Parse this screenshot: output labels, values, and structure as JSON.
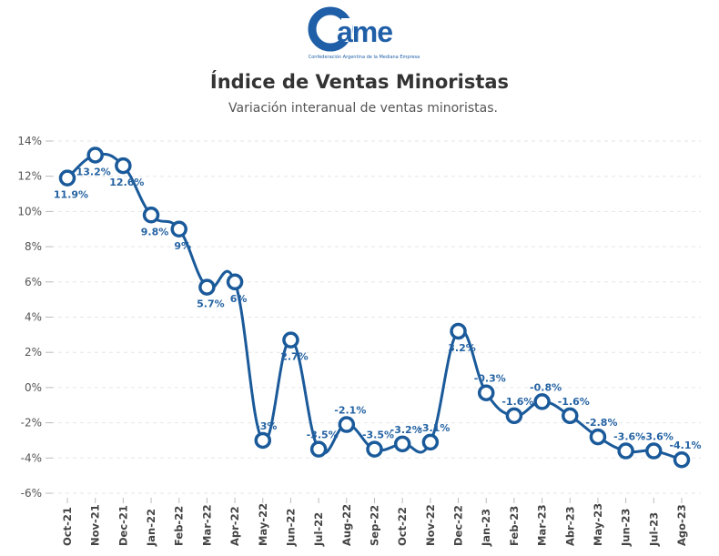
{
  "logo": {
    "text": "Came",
    "tagline": "Confederación Argentina de la Mediana Empresa"
  },
  "chart_data": {
    "type": "line",
    "title": "Índice de Ventas Minoristas",
    "subtitle": "Variación interanual de ventas minoristas.",
    "xlabel": "",
    "ylabel": "",
    "categories": [
      "Oct-21",
      "Nov-21",
      "Dec-21",
      "Jan-22",
      "Feb-22",
      "Mar-22",
      "Apr-22",
      "May-22",
      "Jun-22",
      "Jul-22",
      "Aug-22",
      "Sep-22",
      "Oct-22",
      "Nov-22",
      "Dec-22",
      "Jan-23",
      "Feb-23",
      "Mar-23",
      "Abr-23",
      "May-23",
      "Jun-23",
      "Jul-23",
      "Ago-23"
    ],
    "values": [
      11.9,
      13.2,
      12.6,
      9.8,
      9,
      5.7,
      6,
      -3,
      2.7,
      -3.5,
      -2.1,
      -3.5,
      -3.2,
      -3.1,
      3.2,
      -0.3,
      -1.6,
      -0.8,
      -1.6,
      -2.8,
      -3.6,
      -3.6,
      -4.1
    ],
    "labels": [
      "11.9%",
      "13.2%",
      "12.6%",
      "9.8%",
      "9%",
      "5.7%",
      "6%",
      "-3%",
      "2.7%",
      "-3.5%",
      "-2.1%",
      "-3.5%",
      "-3.2%",
      "-3.1%",
      "3.2%",
      "-0.3%",
      "-1.6%",
      "-0.8%",
      "-1.6%",
      "-2.8%",
      "-3.6%",
      "-3.6%",
      "-4.1%"
    ],
    "ylim": [
      -6,
      14
    ],
    "yticks": [
      "-6%",
      "-4%",
      "-2%",
      "0%",
      "2%",
      "4%",
      "6%",
      "8%",
      "10%",
      "12%",
      "14%"
    ],
    "grid": true,
    "line_color": "#1a5a9a"
  }
}
